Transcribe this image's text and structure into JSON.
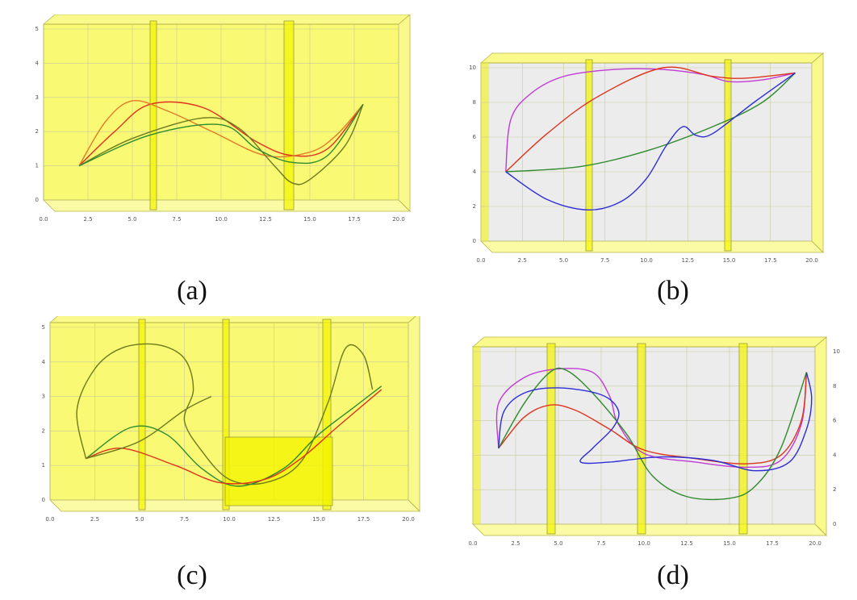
{
  "panels": [
    {
      "caption": "(a)"
    },
    {
      "caption": "(b)"
    },
    {
      "caption": "(c)"
    },
    {
      "caption": "(d)"
    }
  ],
  "colors": {
    "wall_fill": "#f4f400",
    "floor_fill": "#ececec",
    "red": "#e0321e",
    "orange": "#e07a28",
    "green": "#2e8a2e",
    "blue": "#2d2dd8",
    "magenta": "#c03ad6",
    "olive": "#6d7a1e"
  },
  "chart_data": [
    {
      "type": "line",
      "panel": "(a)",
      "x_ticks": [
        "0.0",
        "2.5",
        "5.0",
        "7.5",
        "10.0",
        "12.5",
        "15.0",
        "17.5",
        "20.0"
      ],
      "y_ticks": [
        "0",
        "1",
        "2",
        "3",
        "4",
        "5"
      ],
      "xlim": [
        0,
        20
      ],
      "ylim": [
        0,
        5
      ],
      "series": [
        {
          "color": "red",
          "points": [
            [
              2,
              1
            ],
            [
              4,
              2
            ],
            [
              6,
              2.8
            ],
            [
              9,
              2.7
            ],
            [
              12,
              1.7
            ],
            [
              14,
              1.3
            ],
            [
              16,
              1.5
            ],
            [
              18,
              2.8
            ]
          ]
        },
        {
          "color": "orange",
          "points": [
            [
              2,
              1
            ],
            [
              3.5,
              2.3
            ],
            [
              5,
              2.9
            ],
            [
              7,
              2.6
            ],
            [
              9.5,
              2
            ],
            [
              12.5,
              1.3
            ],
            [
              15,
              1.4
            ],
            [
              16.5,
              1.9
            ],
            [
              18,
              2.8
            ]
          ]
        },
        {
          "color": "olive",
          "points": [
            [
              2,
              1
            ],
            [
              5,
              1.8
            ],
            [
              9,
              2.4
            ],
            [
              11,
              2.1
            ],
            [
              13,
              1
            ],
            [
              14,
              0.5
            ],
            [
              15,
              0.6
            ],
            [
              17,
              1.6
            ],
            [
              18,
              2.8
            ]
          ]
        },
        {
          "color": "green",
          "points": [
            [
              2,
              1
            ],
            [
              6,
              1.9
            ],
            [
              10,
              2.2
            ],
            [
              12,
              1.5
            ],
            [
              14,
              1.1
            ],
            [
              16,
              1.3
            ],
            [
              18,
              2.8
            ]
          ]
        }
      ]
    },
    {
      "type": "line",
      "panel": "(b)",
      "x_ticks": [
        "0.0",
        "2.5",
        "5.0",
        "7.5",
        "10.0",
        "12.5",
        "15.0",
        "17.5",
        "20.0"
      ],
      "y_ticks": [
        "0",
        "2",
        "4",
        "6",
        "8",
        "10"
      ],
      "xlim": [
        0,
        20
      ],
      "ylim": [
        0,
        10
      ],
      "series": [
        {
          "color": "magenta",
          "points": [
            [
              1.5,
              4
            ],
            [
              1.8,
              7
            ],
            [
              3,
              8.5
            ],
            [
              5,
              9.5
            ],
            [
              8,
              9.9
            ],
            [
              11,
              9.9
            ],
            [
              13.5,
              9.6
            ],
            [
              15,
              9.2
            ],
            [
              17,
              9.3
            ],
            [
              19,
              9.7
            ]
          ]
        },
        {
          "color": "red",
          "points": [
            [
              1.5,
              4
            ],
            [
              4,
              6.2
            ],
            [
              7,
              8.3
            ],
            [
              11,
              10
            ],
            [
              14,
              9.5
            ],
            [
              16,
              9.4
            ],
            [
              19,
              9.7
            ]
          ]
        },
        {
          "color": "green",
          "points": [
            [
              1.5,
              4
            ],
            [
              6,
              4.3
            ],
            [
              10,
              5.2
            ],
            [
              14,
              6.6
            ],
            [
              17,
              8
            ],
            [
              19,
              9.7
            ]
          ]
        },
        {
          "color": "blue",
          "points": [
            [
              1.5,
              4
            ],
            [
              4,
              2.4
            ],
            [
              6.5,
              1.8
            ],
            [
              8.5,
              2.3
            ],
            [
              10,
              3.6
            ],
            [
              11.2,
              5.5
            ],
            [
              12.2,
              6.6
            ],
            [
              13,
              6.1
            ],
            [
              14,
              6.2
            ],
            [
              16.5,
              8
            ],
            [
              19,
              9.7
            ]
          ]
        }
      ]
    },
    {
      "type": "line",
      "panel": "(c)",
      "x_ticks": [
        "0.0",
        "2.5",
        "5.0",
        "7.5",
        "10.0",
        "12.5",
        "15.0",
        "17.5",
        "20.0"
      ],
      "y_ticks": [
        "0",
        "1",
        "2",
        "3",
        "4",
        "5"
      ],
      "xlim": [
        0,
        20
      ],
      "ylim": [
        0,
        5
      ],
      "series": [
        {
          "color": "olive",
          "points": [
            [
              2,
              1.2
            ],
            [
              1.5,
              2.6
            ],
            [
              2.5,
              3.8
            ],
            [
              4,
              4.4
            ],
            [
              6,
              4.5
            ],
            [
              7.5,
              4.1
            ],
            [
              8,
              3.2
            ],
            [
              7.5,
              2.3
            ],
            [
              8.5,
              1.4
            ],
            [
              10,
              0.6
            ],
            [
              12,
              0.5
            ],
            [
              14,
              1.1
            ],
            [
              15.5,
              2.8
            ],
            [
              16.5,
              4.4
            ],
            [
              17.5,
              4.2
            ],
            [
              18,
              3.2
            ]
          ]
        },
        {
          "color": "green",
          "points": [
            [
              2,
              1.2
            ],
            [
              4.5,
              2.1
            ],
            [
              6.5,
              1.9
            ],
            [
              8.5,
              0.9
            ],
            [
              10.5,
              0.4
            ],
            [
              13,
              0.9
            ],
            [
              15,
              1.9
            ],
            [
              17,
              2.7
            ],
            [
              18.5,
              3.3
            ]
          ]
        },
        {
          "color": "red",
          "points": [
            [
              2,
              1.2
            ],
            [
              4,
              1.5
            ],
            [
              7,
              1
            ],
            [
              9.5,
              0.5
            ],
            [
              12,
              0.6
            ],
            [
              14,
              1.2
            ],
            [
              16,
              2.1
            ],
            [
              18.5,
              3.2
            ]
          ]
        },
        {
          "color": "olive",
          "points": [
            [
              2,
              1.2
            ],
            [
              5,
              1.7
            ],
            [
              7.5,
              2.6
            ],
            [
              9,
              3
            ]
          ]
        }
      ]
    },
    {
      "type": "line",
      "panel": "(d)",
      "x_ticks": [
        "0.0",
        "2.5",
        "5.0",
        "7.5",
        "10.0",
        "12.5",
        "15.0",
        "17.5",
        "20.0"
      ],
      "y_ticks": [
        "0",
        "2",
        "4",
        "6",
        "8",
        "10"
      ],
      "xlim": [
        0,
        20
      ],
      "ylim": [
        0,
        10
      ],
      "series": [
        {
          "color": "magenta",
          "points": [
            [
              1.5,
              4.4
            ],
            [
              1.5,
              7
            ],
            [
              3,
              8.5
            ],
            [
              5,
              9
            ],
            [
              7,
              8.8
            ],
            [
              8,
              7.4
            ],
            [
              8.5,
              5.8
            ],
            [
              10,
              4.1
            ],
            [
              13,
              3.6
            ],
            [
              16,
              3.3
            ],
            [
              18,
              3.7
            ],
            [
              19.2,
              5.8
            ],
            [
              19.5,
              8.8
            ]
          ]
        },
        {
          "color": "red",
          "points": [
            [
              1.5,
              4.4
            ],
            [
              3,
              6.2
            ],
            [
              4.5,
              6.9
            ],
            [
              6,
              6.6
            ],
            [
              8,
              5.5
            ],
            [
              10,
              4.3
            ],
            [
              13,
              3.8
            ],
            [
              16,
              3.5
            ],
            [
              18,
              4
            ],
            [
              19.2,
              6
            ],
            [
              19.5,
              8.8
            ]
          ]
        },
        {
          "color": "green",
          "points": [
            [
              1.5,
              4.4
            ],
            [
              3,
              7
            ],
            [
              4.5,
              8.8
            ],
            [
              5.5,
              8.9
            ],
            [
              7,
              7.6
            ],
            [
              9,
              5.2
            ],
            [
              10.5,
              2.8
            ],
            [
              12.5,
              1.6
            ],
            [
              15,
              1.5
            ],
            [
              16.5,
              2.2
            ],
            [
              18,
              4.4
            ],
            [
              19.5,
              8.8
            ]
          ]
        },
        {
          "color": "blue",
          "points": [
            [
              1.5,
              4.4
            ],
            [
              1.8,
              6.5
            ],
            [
              3,
              7.6
            ],
            [
              5,
              7.9
            ],
            [
              7.5,
              7.5
            ],
            [
              8.5,
              6.6
            ],
            [
              8.2,
              5.6
            ],
            [
              7,
              4.4
            ],
            [
              6.3,
              3.6
            ],
            [
              8,
              3.6
            ],
            [
              11,
              3.9
            ],
            [
              14,
              3.7
            ],
            [
              16.5,
              3.1
            ],
            [
              18.5,
              3.6
            ],
            [
              19.5,
              5.5
            ],
            [
              19.8,
              7.3
            ],
            [
              19.5,
              8.8
            ]
          ]
        }
      ]
    }
  ]
}
